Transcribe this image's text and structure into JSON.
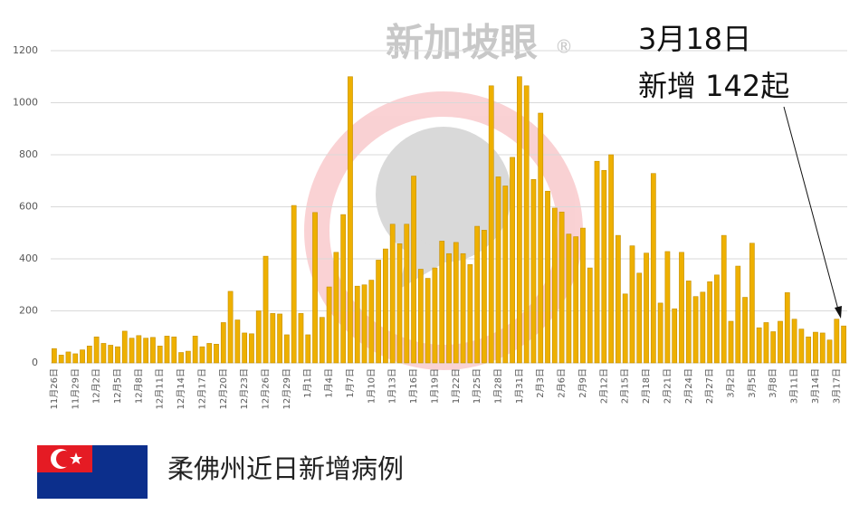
{
  "chart_data": {
    "type": "bar",
    "title": "柔佛州近日新增病例",
    "watermark": "新加坡眼",
    "annotation": [
      "3月18日",
      "新增 142起"
    ],
    "color": "#eeb000",
    "grid": true,
    "ylim": [
      0,
      1200
    ],
    "yticks": [
      0,
      200,
      400,
      600,
      800,
      1000,
      1200
    ],
    "categories": [
      "11月26日",
      null,
      null,
      "11月29日",
      null,
      null,
      "12月2日",
      null,
      null,
      "12月5日",
      null,
      null,
      "12月8日",
      null,
      null,
      "12月11日",
      null,
      null,
      "12月14日",
      null,
      null,
      "12月17日",
      null,
      null,
      "12月20日",
      null,
      null,
      "12月23日",
      null,
      null,
      "12月26日",
      null,
      null,
      "12月29日",
      null,
      null,
      "1月1日",
      null,
      null,
      "1月4日",
      null,
      null,
      "1月7日",
      null,
      null,
      "1月10日",
      null,
      null,
      "1月13日",
      null,
      null,
      "1月16日",
      null,
      null,
      "1月19日",
      null,
      null,
      "1月22日",
      null,
      null,
      "1月25日",
      null,
      null,
      "1月28日",
      null,
      null,
      "1月31日",
      null,
      null,
      "2月3日",
      null,
      null,
      "2月6日",
      null,
      null,
      "2月9日",
      null,
      null,
      "2月12日",
      null,
      null,
      "2月15日",
      null,
      null,
      "2月18日",
      null,
      null,
      "2月21日",
      null,
      null,
      "2月24日",
      null,
      null,
      "2月27日",
      null,
      null,
      "3月2日",
      null,
      null,
      "3月5日",
      null,
      null,
      "3月8日",
      null,
      null,
      "3月11日",
      null,
      null,
      "3月14日",
      null,
      null,
      "3月17日",
      null
    ],
    "values": [
      55,
      30,
      42,
      35,
      50,
      65,
      100,
      75,
      68,
      62,
      122,
      95,
      105,
      95,
      98,
      65,
      103,
      100,
      40,
      45,
      103,
      62,
      75,
      72,
      155,
      275,
      165,
      115,
      112,
      200,
      410,
      190,
      188,
      108,
      605,
      190,
      108,
      578,
      175,
      292,
      425,
      570,
      1100,
      295,
      300,
      318,
      395,
      438,
      533,
      458,
      533,
      718,
      360,
      325,
      365,
      468,
      420,
      463,
      420,
      378,
      525,
      510,
      1065,
      715,
      680,
      790,
      1100,
      1065,
      705,
      960,
      660,
      595,
      580,
      495,
      485,
      518,
      365,
      775,
      740,
      800,
      490,
      265,
      450,
      345,
      422,
      728,
      230,
      428,
      208,
      425,
      315,
      255,
      272,
      312,
      338,
      490,
      160,
      372,
      252,
      460,
      135,
      155,
      120,
      160,
      270,
      168,
      130,
      100,
      118,
      115,
      88,
      168,
      142
    ]
  }
}
